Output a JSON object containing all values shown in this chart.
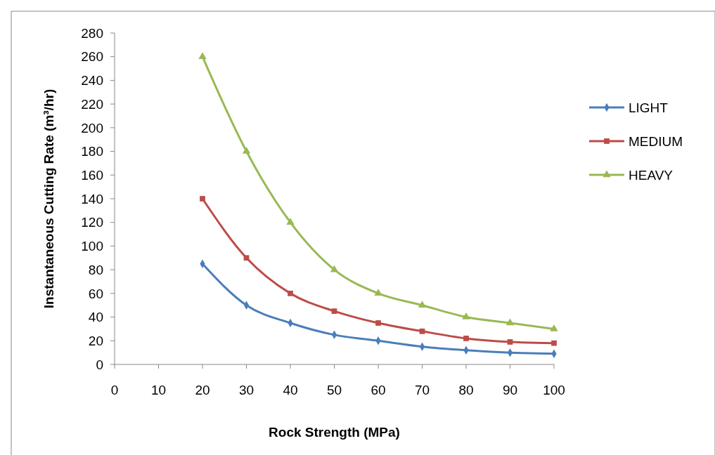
{
  "chart_data": {
    "type": "line",
    "xlabel": "Rock Strength (MPa)",
    "ylabel": "Instantaneous Cutting Rate (m³/hr)",
    "xlim": [
      0,
      100
    ],
    "xticks": [
      0,
      10,
      20,
      30,
      40,
      50,
      60,
      70,
      80,
      90,
      100
    ],
    "ylim": [
      0,
      280
    ],
    "yticks": [
      0,
      20,
      40,
      60,
      80,
      100,
      120,
      140,
      160,
      180,
      200,
      220,
      240,
      260,
      280
    ],
    "x": [
      20,
      30,
      40,
      50,
      60,
      70,
      80,
      90,
      100
    ],
    "legend": "right",
    "grid": false,
    "series": [
      {
        "name": "LIGHT",
        "color": "#4a7ebb",
        "marker": "diamond",
        "values": [
          85,
          50,
          35,
          25,
          20,
          15,
          12,
          10,
          9
        ]
      },
      {
        "name": "MEDIUM",
        "color": "#be4b48",
        "marker": "square",
        "values": [
          140,
          90,
          60,
          45,
          35,
          28,
          22,
          19,
          18
        ]
      },
      {
        "name": "HEAVY",
        "color": "#98b954",
        "marker": "triangle",
        "values": [
          260,
          180,
          120,
          80,
          60,
          50,
          40,
          35,
          30
        ]
      }
    ]
  }
}
